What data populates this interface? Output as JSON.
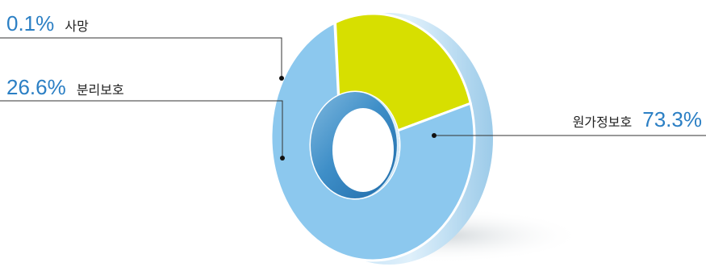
{
  "chart_data": {
    "type": "pie",
    "style": "3d-donut",
    "categories": [
      "원가정보호",
      "분리보호",
      "사망"
    ],
    "values": [
      73.3,
      26.6,
      0.1
    ],
    "value_labels": [
      "73.3%",
      "26.6%",
      "0.1%"
    ],
    "colors": [
      "#8cc8ee",
      "#d7df00",
      "#8cc8ee"
    ],
    "title": "",
    "legend": "none"
  }
}
